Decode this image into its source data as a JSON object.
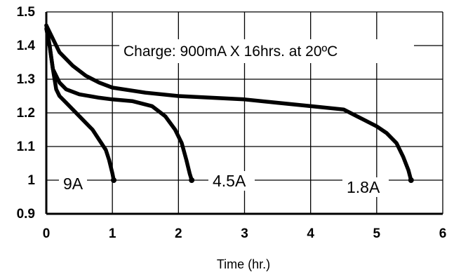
{
  "chart_data": {
    "type": "line",
    "title": "",
    "xlabel": "Time (hr.)",
    "ylabel": "",
    "xlim": [
      0,
      6
    ],
    "ylim": [
      0.9,
      1.5
    ],
    "xticks": [
      0,
      1,
      2,
      3,
      4,
      5,
      6
    ],
    "xtick_labels": [
      "0",
      "1",
      "2",
      "3",
      "4",
      "5",
      "6"
    ],
    "yticks": [
      1.5,
      1.4,
      1.3,
      1.2,
      1.1,
      1,
      0.9
    ],
    "ytick_labels": [
      "1.5",
      "1.4",
      "1.3",
      "1.2",
      "1.1",
      "1",
      "0.9"
    ],
    "grid": true,
    "annotation": "Charge: 900mA X 16hrs. at 20ºC",
    "series": [
      {
        "name": "9A",
        "x": [
          0,
          0.05,
          0.1,
          0.15,
          0.2,
          0.3,
          0.4,
          0.5,
          0.6,
          0.7,
          0.8,
          0.9,
          0.95,
          1.0,
          1.02
        ],
        "y": [
          1.45,
          1.4,
          1.33,
          1.27,
          1.25,
          1.23,
          1.21,
          1.19,
          1.17,
          1.15,
          1.12,
          1.09,
          1.06,
          1.02,
          1.0
        ]
      },
      {
        "name": "4.5A",
        "x": [
          0,
          0.05,
          0.1,
          0.2,
          0.3,
          0.5,
          0.8,
          1.0,
          1.3,
          1.6,
          1.8,
          1.95,
          2.05,
          2.12,
          2.17,
          2.2
        ],
        "y": [
          1.46,
          1.4,
          1.33,
          1.29,
          1.27,
          1.255,
          1.245,
          1.24,
          1.235,
          1.22,
          1.19,
          1.15,
          1.11,
          1.06,
          1.02,
          1.0
        ]
      },
      {
        "name": "1.8A",
        "x": [
          0,
          0.1,
          0.2,
          0.4,
          0.6,
          0.8,
          1.0,
          1.5,
          2.0,
          2.5,
          3.0,
          3.5,
          4.0,
          4.5,
          4.8,
          5.0,
          5.15,
          5.3,
          5.4,
          5.48,
          5.52
        ],
        "y": [
          1.46,
          1.42,
          1.38,
          1.34,
          1.31,
          1.29,
          1.275,
          1.26,
          1.25,
          1.245,
          1.24,
          1.23,
          1.22,
          1.21,
          1.18,
          1.16,
          1.14,
          1.11,
          1.07,
          1.03,
          1.0
        ]
      }
    ]
  }
}
